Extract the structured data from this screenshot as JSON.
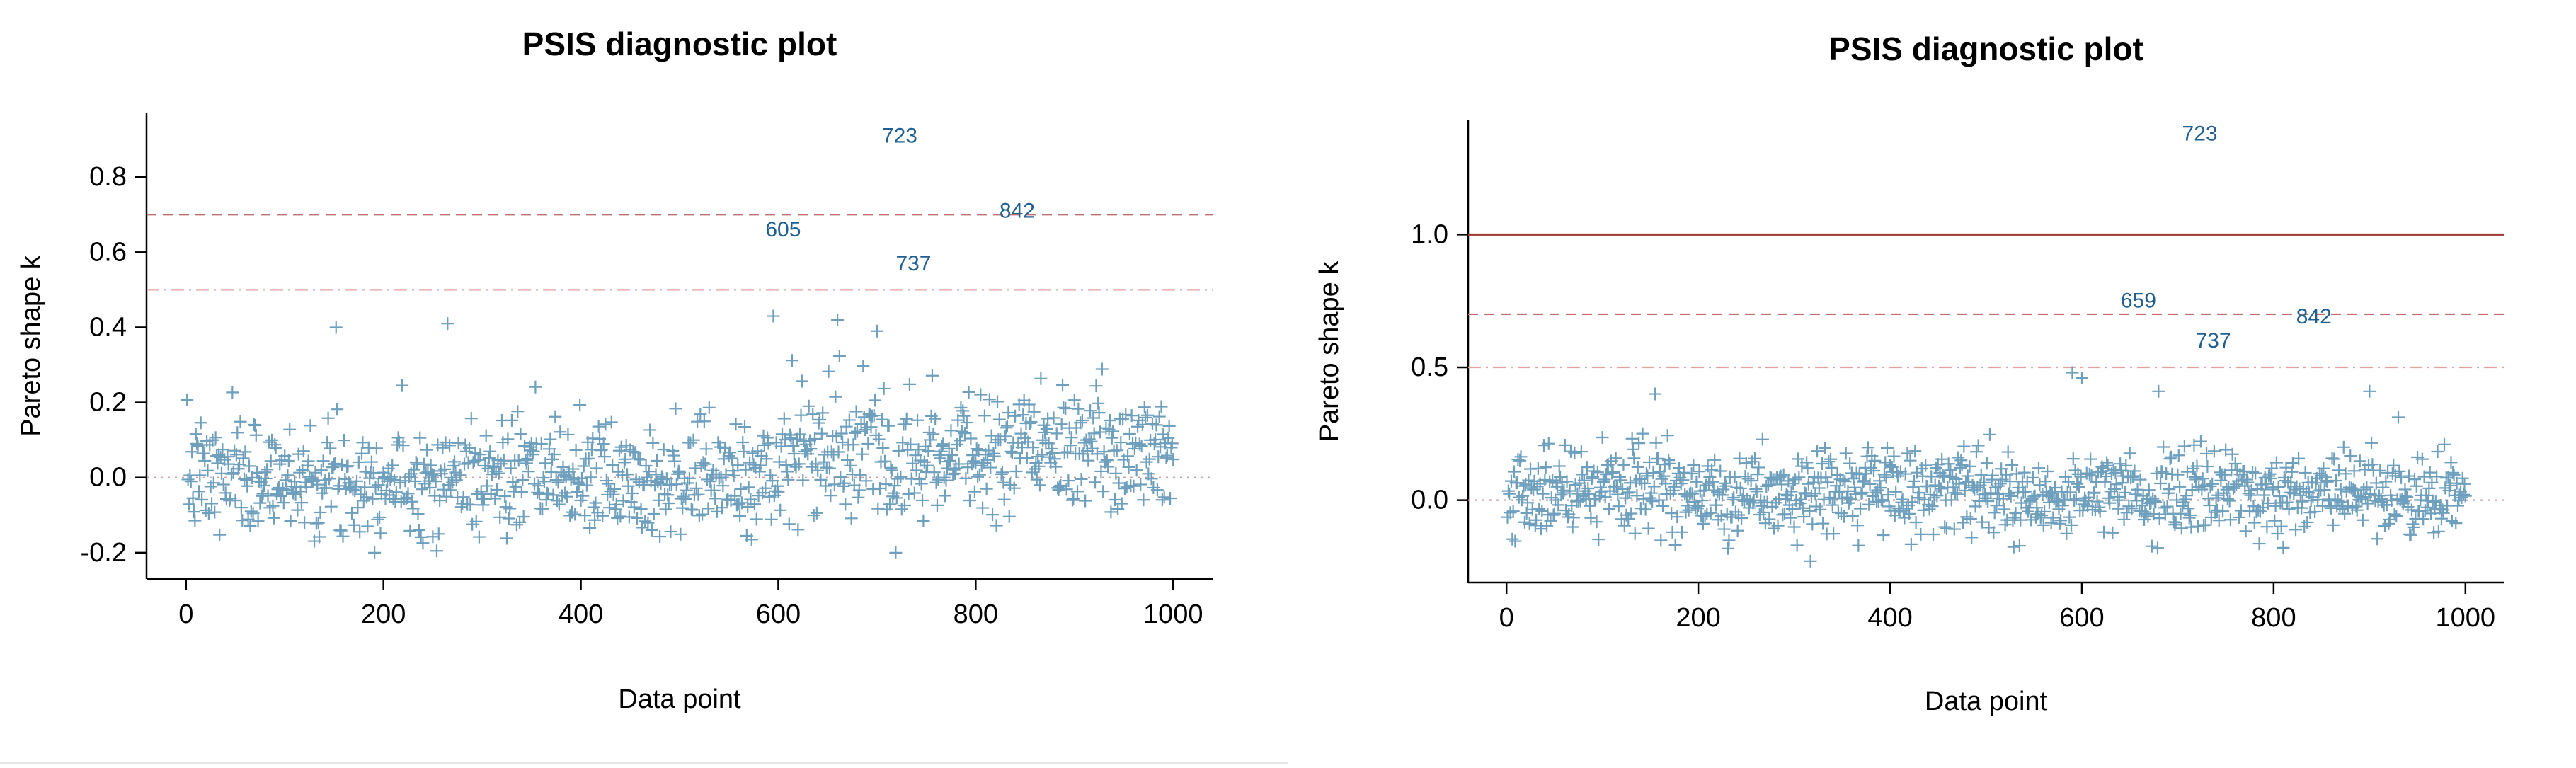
{
  "chart_data": [
    {
      "type": "scatter",
      "title": "PSIS diagnostic plot",
      "xlabel": "Data point",
      "ylabel": "Pareto shape k",
      "xlim": [
        -40,
        1040
      ],
      "ylim": [
        -0.27,
        0.97
      ],
      "xticks": [
        0,
        200,
        400,
        600,
        800,
        1000
      ],
      "yticks": [
        -0.2,
        0.0,
        0.2,
        0.4,
        0.6,
        0.8
      ],
      "ytick_labels": [
        "-0.2",
        "0.0",
        "0.2",
        "0.4",
        "0.6",
        "0.8"
      ],
      "xtick_labels": [
        "0",
        "200",
        "400",
        "600",
        "800",
        "1000"
      ],
      "grid": false,
      "marker": "+",
      "point_color": "#6e9fbd",
      "label_color": "#1f5f92",
      "n_points": 1000,
      "point_y_range": [
        -0.22,
        0.43
      ],
      "hlines": [
        {
          "y": 0.0,
          "style": "dotted",
          "color": "#c9a0a0"
        },
        {
          "y": 0.5,
          "style": "dashdot",
          "color": "#e3a0a0"
        },
        {
          "y": 0.7,
          "style": "dashed",
          "color": "#c07070"
        }
      ],
      "labeled_points": [
        {
          "x": 723,
          "y": 0.91,
          "label": "723"
        },
        {
          "x": 842,
          "y": 0.71,
          "label": "842"
        },
        {
          "x": 605,
          "y": 0.66,
          "label": "605"
        },
        {
          "x": 737,
          "y": 0.57,
          "label": "737"
        }
      ],
      "notable_points": [
        {
          "x": 152,
          "y": 0.4
        },
        {
          "x": 265,
          "y": 0.41
        },
        {
          "x": 595,
          "y": 0.43
        },
        {
          "x": 660,
          "y": 0.42
        },
        {
          "x": 700,
          "y": 0.39
        }
      ]
    },
    {
      "type": "scatter",
      "title": "PSIS diagnostic plot",
      "xlabel": "Data point",
      "ylabel": "Pareto shape k",
      "xlim": [
        -40,
        1040
      ],
      "ylim": [
        -0.31,
        1.43
      ],
      "xticks": [
        0,
        200,
        400,
        600,
        800,
        1000
      ],
      "yticks": [
        0.0,
        0.5,
        1.0
      ],
      "ytick_labels": [
        "0.0",
        "0.5",
        "1.0"
      ],
      "xtick_labels": [
        "0",
        "200",
        "400",
        "600",
        "800",
        "1000"
      ],
      "grid": false,
      "marker": "+",
      "point_color": "#6e9fbd",
      "label_color": "#1f5f92",
      "n_points": 1000,
      "point_y_range": [
        -0.27,
        0.48
      ],
      "hlines": [
        {
          "y": 0.0,
          "style": "dotted",
          "color": "#c9a0a0"
        },
        {
          "y": 0.5,
          "style": "dashdot",
          "color": "#e3a0a0"
        },
        {
          "y": 0.7,
          "style": "dashed",
          "color": "#c07070"
        },
        {
          "y": 1.0,
          "style": "solid",
          "color": "#a03535"
        }
      ],
      "labeled_points": [
        {
          "x": 723,
          "y": 1.38,
          "label": "723"
        },
        {
          "x": 659,
          "y": 0.75,
          "label": "659"
        },
        {
          "x": 842,
          "y": 0.69,
          "label": "842"
        },
        {
          "x": 737,
          "y": 0.6,
          "label": "737"
        }
      ],
      "notable_points": [
        {
          "x": 155,
          "y": 0.4
        },
        {
          "x": 590,
          "y": 0.48
        },
        {
          "x": 600,
          "y": 0.46
        },
        {
          "x": 680,
          "y": 0.41
        },
        {
          "x": 900,
          "y": 0.41
        }
      ]
    }
  ]
}
